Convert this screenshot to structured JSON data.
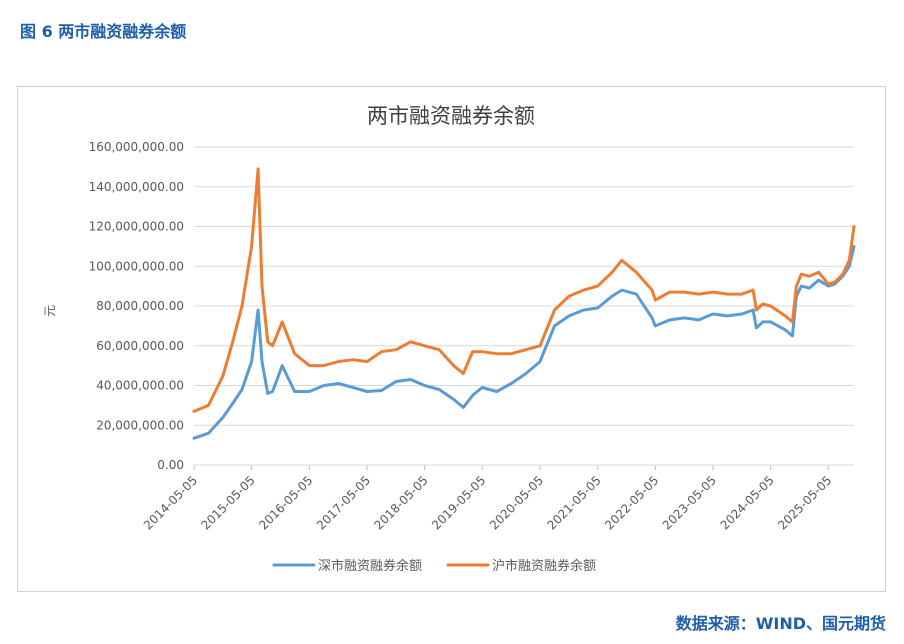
{
  "figure": {
    "caption": "图 6  两市融资融券余额",
    "source": "数据来源：WIND、国元期货"
  },
  "colors": {
    "caption": "#1f5fa8",
    "series_sz": "#5b9bd5",
    "series_sh": "#ed7d31",
    "grid": "#d9d9d9",
    "axis_text": "#595959"
  },
  "chart_data": {
    "type": "line",
    "title": "两市融资融券余额",
    "ylabel": "元",
    "xlabel": "",
    "ylim": [
      0,
      160000000
    ],
    "yticks": [
      0,
      20000000,
      40000000,
      60000000,
      80000000,
      100000000,
      120000000,
      140000000,
      160000000
    ],
    "ytick_labels": [
      "0.00",
      "20,000,000.00",
      "40,000,000.00",
      "60,000,000.00",
      "80,000,000.00",
      "100,000,000.00",
      "120,000,000.00",
      "140,000,000.00",
      "160,000,000.00"
    ],
    "xlim": [
      "2014-05-05",
      "2025-10-15"
    ],
    "xticks": [
      "2014-05-05",
      "2015-05-05",
      "2016-05-05",
      "2017-05-05",
      "2018-05-05",
      "2019-05-05",
      "2020-05-05",
      "2021-05-05",
      "2022-05-05",
      "2023-05-05",
      "2024-05-05",
      "2025-05-05"
    ],
    "grid": "horizontal",
    "legend_position": "bottom",
    "series": [
      {
        "name": "深市融资融券余额",
        "color": "#5b9bd5",
        "x": [
          "2014-05-05",
          "2014-08-05",
          "2014-11-05",
          "2015-01-05",
          "2015-03-05",
          "2015-05-05",
          "2015-06-15",
          "2015-07-10",
          "2015-08-15",
          "2015-09-15",
          "2015-11-15",
          "2016-02-01",
          "2016-05-05",
          "2016-08-05",
          "2016-11-05",
          "2017-02-05",
          "2017-05-05",
          "2017-08-05",
          "2017-11-05",
          "2018-02-05",
          "2018-05-05",
          "2018-08-05",
          "2018-11-05",
          "2019-01-05",
          "2019-03-05",
          "2019-05-05",
          "2019-08-05",
          "2019-11-05",
          "2020-02-05",
          "2020-05-05",
          "2020-08-05",
          "2020-11-05",
          "2021-02-05",
          "2021-05-05",
          "2021-08-05",
          "2021-10-05",
          "2022-01-05",
          "2022-04-15",
          "2022-05-05",
          "2022-08-05",
          "2022-11-05",
          "2023-02-05",
          "2023-05-05",
          "2023-08-05",
          "2023-11-05",
          "2024-01-15",
          "2024-02-05",
          "2024-03-15",
          "2024-05-05",
          "2024-08-05",
          "2024-09-20",
          "2024-10-15",
          "2024-11-15",
          "2025-01-05",
          "2025-03-05",
          "2025-05-05",
          "2025-06-15",
          "2025-08-05",
          "2025-09-15",
          "2025-10-15"
        ],
        "values": [
          13500000,
          16000000,
          24000000,
          31000000,
          38000000,
          52000000,
          78000000,
          52000000,
          36000000,
          37000000,
          50000000,
          37000000,
          37000000,
          40000000,
          41000000,
          39000000,
          37000000,
          37500000,
          42000000,
          43000000,
          40000000,
          38000000,
          33000000,
          29000000,
          35000000,
          39000000,
          37000000,
          41000000,
          46000000,
          52000000,
          70000000,
          75000000,
          78000000,
          79000000,
          85000000,
          88000000,
          86000000,
          74000000,
          70000000,
          73000000,
          74000000,
          73000000,
          76000000,
          75000000,
          76000000,
          78000000,
          69000000,
          72000000,
          72000000,
          68000000,
          65000000,
          85000000,
          90000000,
          89000000,
          93000000,
          90000000,
          91000000,
          95000000,
          100000000,
          110000000
        ]
      },
      {
        "name": "沪市融资融券余额",
        "color": "#ed7d31",
        "x": [
          "2014-05-05",
          "2014-08-05",
          "2014-11-05",
          "2015-01-05",
          "2015-03-05",
          "2015-05-05",
          "2015-06-15",
          "2015-07-10",
          "2015-08-15",
          "2015-09-15",
          "2015-11-15",
          "2016-02-01",
          "2016-05-05",
          "2016-08-05",
          "2016-11-05",
          "2017-02-05",
          "2017-05-05",
          "2017-08-05",
          "2017-11-05",
          "2018-02-05",
          "2018-05-05",
          "2018-08-05",
          "2018-11-05",
          "2019-01-05",
          "2019-03-05",
          "2019-05-05",
          "2019-08-05",
          "2019-11-05",
          "2020-02-05",
          "2020-05-05",
          "2020-08-05",
          "2020-11-05",
          "2021-02-05",
          "2021-05-05",
          "2021-08-05",
          "2021-10-05",
          "2022-01-05",
          "2022-04-15",
          "2022-05-05",
          "2022-08-05",
          "2022-11-05",
          "2023-02-05",
          "2023-05-05",
          "2023-08-05",
          "2023-11-05",
          "2024-01-15",
          "2024-02-05",
          "2024-03-15",
          "2024-05-05",
          "2024-08-05",
          "2024-09-20",
          "2024-10-15",
          "2024-11-15",
          "2025-01-05",
          "2025-03-05",
          "2025-05-05",
          "2025-06-15",
          "2025-08-05",
          "2025-09-15",
          "2025-10-15"
        ],
        "values": [
          27000000,
          30000000,
          45000000,
          62000000,
          80000000,
          110000000,
          149000000,
          90000000,
          62000000,
          60000000,
          72000000,
          56000000,
          50000000,
          50000000,
          52000000,
          53000000,
          52000000,
          57000000,
          58000000,
          62000000,
          60000000,
          58000000,
          50000000,
          46000000,
          57000000,
          57000000,
          56000000,
          56000000,
          58000000,
          60000000,
          78000000,
          85000000,
          88000000,
          90000000,
          97000000,
          103000000,
          97000000,
          88000000,
          83000000,
          87000000,
          87000000,
          86000000,
          87000000,
          86000000,
          86000000,
          88000000,
          78000000,
          81000000,
          80000000,
          75000000,
          72000000,
          90000000,
          96000000,
          95000000,
          97000000,
          91000000,
          92000000,
          96000000,
          103000000,
          120000000
        ]
      }
    ]
  }
}
